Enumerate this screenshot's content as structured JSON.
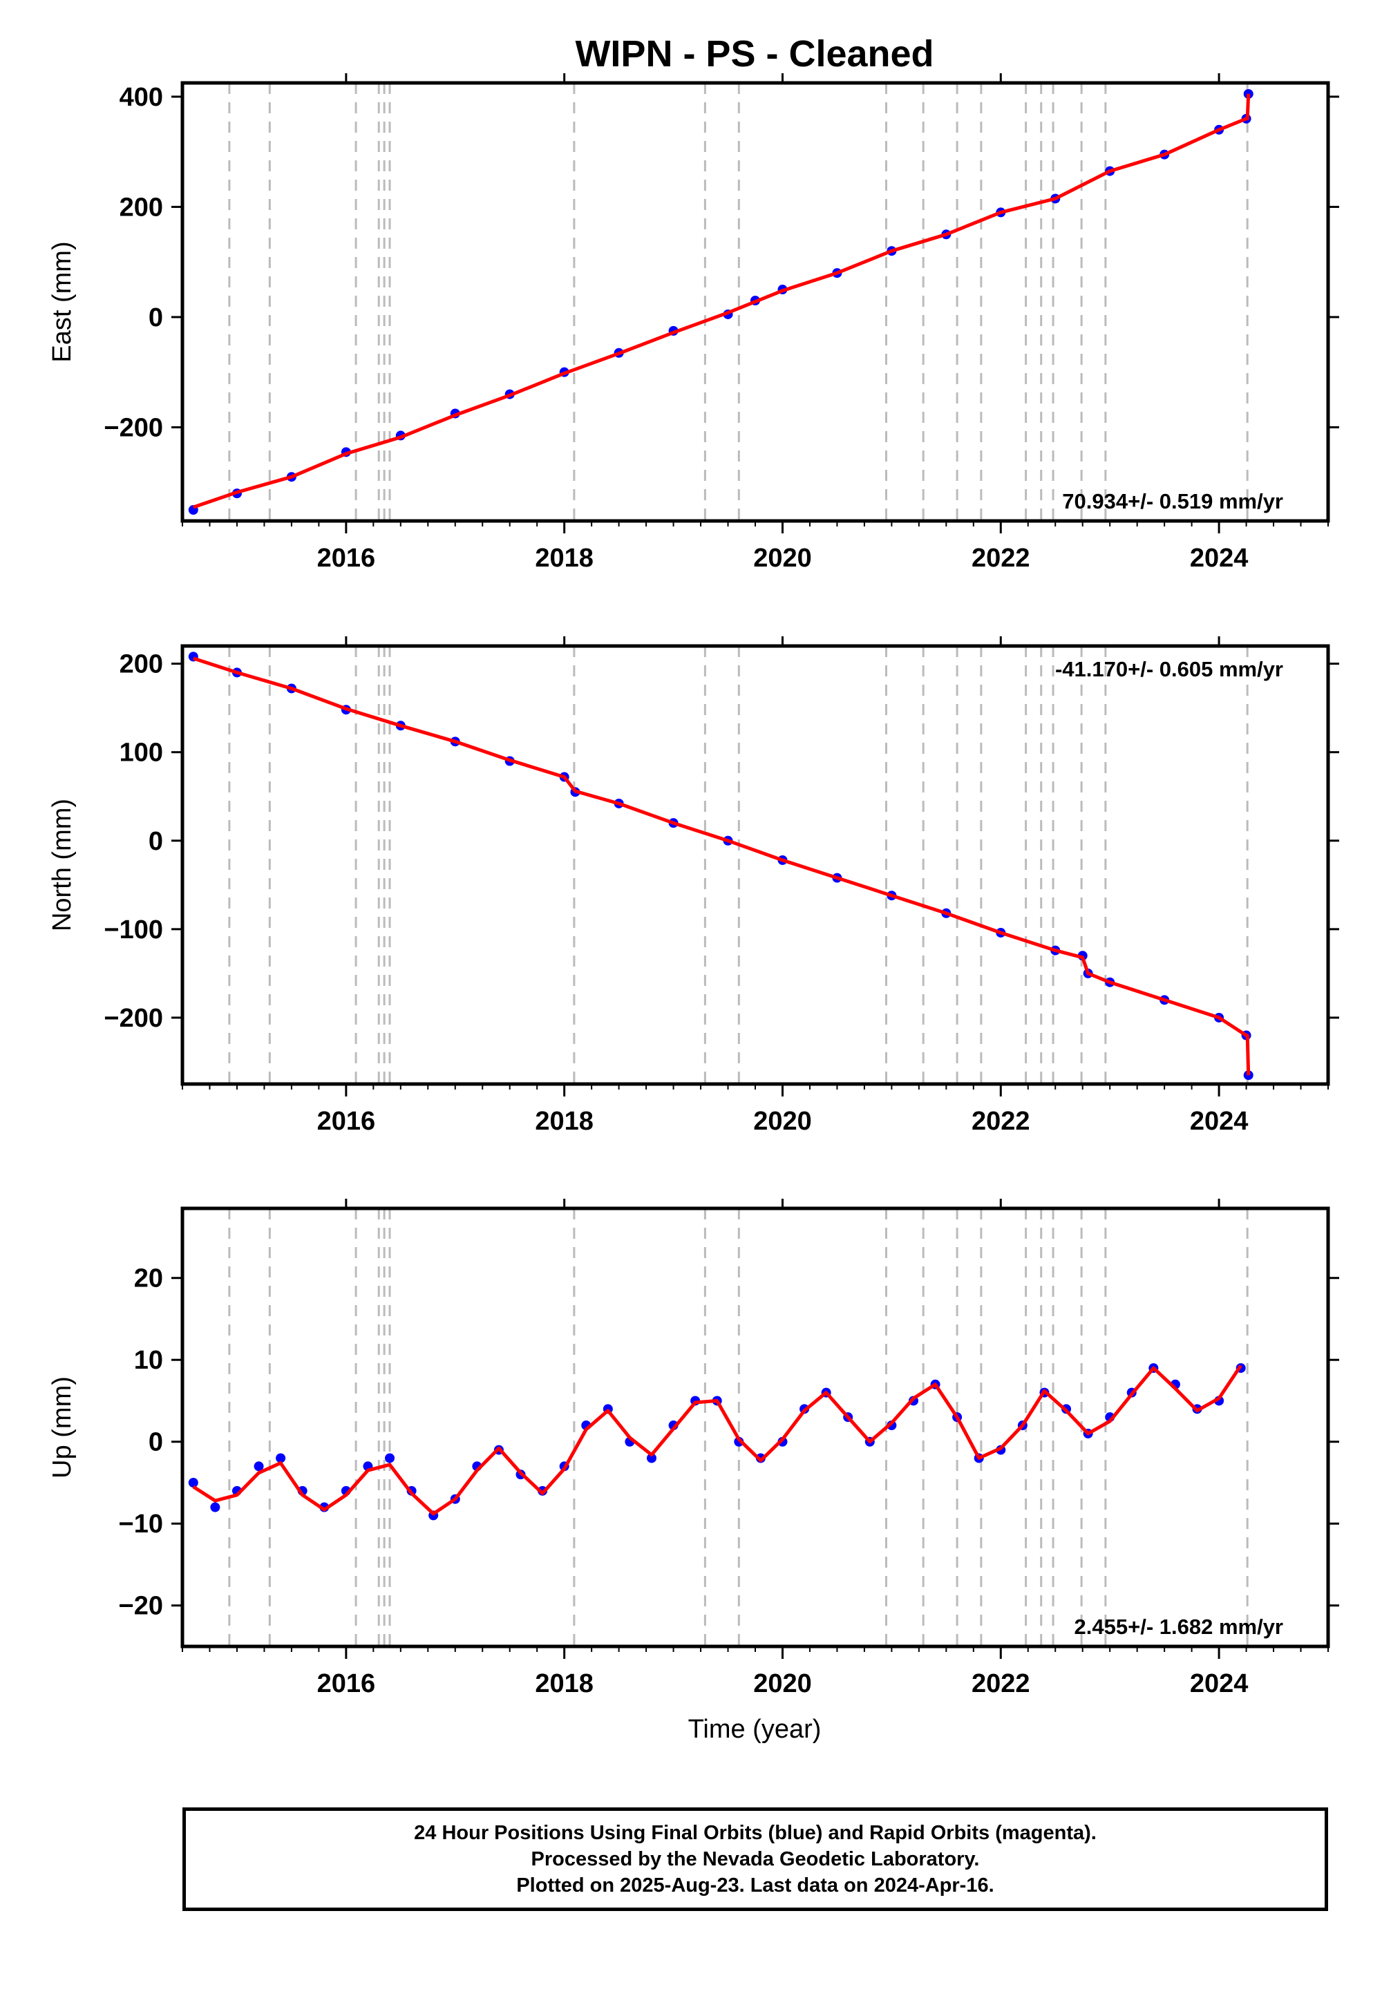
{
  "title": "WIPN  - PS - Cleaned",
  "xlabel": "Time (year)",
  "footer": {
    "line1": "24 Hour Positions Using Final Orbits (blue) and Rapid Orbits (magenta).",
    "line2": "Processed by the Nevada Geodetic Laboratory.",
    "line3": "Plotted on 2025-Aug-23. Last data on 2024-Apr-16."
  },
  "colors": {
    "points": "#0000ff",
    "model": "#ff0000",
    "steps": "#bbbbbb",
    "axis": "#000000"
  },
  "chart_data": [
    {
      "type": "scatter",
      "component": "East",
      "ylabel": "East (mm)",
      "xlim": [
        2014.5,
        2025.0
      ],
      "ylim": [
        -370,
        425
      ],
      "xticks": [
        2016,
        2018,
        2020,
        2022,
        2024
      ],
      "xtick_labels": [
        "2016",
        "2018",
        "2020",
        "2022",
        "2024"
      ],
      "yticks": [
        -200,
        0,
        200,
        400
      ],
      "ytick_labels": [
        "−200",
        "0",
        "200",
        "400"
      ],
      "rate_label": "70.934+/- 0.519 mm/yr",
      "rate_position": "bottom-right",
      "grid": false,
      "series": [
        {
          "name": "Final Orbits (blue)",
          "style": "points",
          "x": [
            2014.6,
            2015.0,
            2015.5,
            2016.0,
            2016.5,
            2017.0,
            2017.5,
            2018.0,
            2018.5,
            2019.0,
            2019.5,
            2019.75,
            2020.0,
            2020.5,
            2021.0,
            2021.5,
            2022.0,
            2022.5,
            2023.0,
            2023.5,
            2024.0,
            2024.25,
            2024.27
          ],
          "y": [
            -350,
            -320,
            -290,
            -245,
            -215,
            -175,
            -140,
            -100,
            -65,
            -25,
            5,
            30,
            50,
            80,
            120,
            150,
            190,
            215,
            265,
            295,
            340,
            360,
            405
          ]
        },
        {
          "name": "Model fit",
          "style": "line",
          "x": [
            2014.6,
            2015.0,
            2015.5,
            2016.0,
            2016.5,
            2017.0,
            2017.5,
            2018.0,
            2018.5,
            2019.0,
            2019.5,
            2020.0,
            2020.5,
            2021.0,
            2021.5,
            2022.0,
            2022.5,
            2023.0,
            2023.5,
            2024.0,
            2024.25,
            2024.26,
            2024.27
          ],
          "y": [
            -345,
            -318,
            -290,
            -248,
            -218,
            -178,
            -142,
            -102,
            -66,
            -28,
            8,
            48,
            80,
            120,
            150,
            190,
            215,
            265,
            295,
            340,
            360,
            360,
            405
          ]
        }
      ]
    },
    {
      "type": "scatter",
      "component": "North",
      "ylabel": "North (mm)",
      "xlim": [
        2014.5,
        2025.0
      ],
      "ylim": [
        -275,
        220
      ],
      "xticks": [
        2016,
        2018,
        2020,
        2022,
        2024
      ],
      "xtick_labels": [
        "2016",
        "2018",
        "2020",
        "2022",
        "2024"
      ],
      "yticks": [
        -200,
        -100,
        0,
        100,
        200
      ],
      "ytick_labels": [
        "−200",
        "−100",
        "0",
        "100",
        "200"
      ],
      "rate_label": "-41.170+/- 0.605 mm/yr",
      "rate_position": "top-right",
      "grid": false,
      "series": [
        {
          "name": "Final Orbits (blue)",
          "style": "points",
          "x": [
            2014.6,
            2015.0,
            2015.5,
            2016.0,
            2016.5,
            2017.0,
            2017.5,
            2018.0,
            2018.1,
            2018.5,
            2019.0,
            2019.5,
            2020.0,
            2020.5,
            2021.0,
            2021.5,
            2022.0,
            2022.5,
            2022.75,
            2022.8,
            2023.0,
            2023.5,
            2024.0,
            2024.25,
            2024.27
          ],
          "y": [
            208,
            190,
            172,
            148,
            130,
            112,
            90,
            72,
            55,
            42,
            20,
            0,
            -22,
            -42,
            -62,
            -82,
            -104,
            -124,
            -130,
            -150,
            -160,
            -180,
            -200,
            -220,
            -265
          ]
        },
        {
          "name": "Model fit",
          "style": "line",
          "x": [
            2014.6,
            2015.0,
            2015.5,
            2016.0,
            2016.5,
            2017.0,
            2017.5,
            2018.0,
            2018.1,
            2018.5,
            2019.0,
            2019.5,
            2020.0,
            2020.5,
            2021.0,
            2021.5,
            2022.0,
            2022.5,
            2022.75,
            2022.8,
            2023.0,
            2023.5,
            2024.0,
            2024.25,
            2024.26,
            2024.27
          ],
          "y": [
            206,
            190,
            172,
            149,
            130,
            112,
            91,
            72,
            56,
            42,
            20,
            0,
            -22,
            -42,
            -62,
            -82,
            -104,
            -124,
            -132,
            -150,
            -160,
            -180,
            -200,
            -220,
            -220,
            -265
          ]
        }
      ]
    },
    {
      "type": "scatter",
      "component": "Up",
      "ylabel": "Up (mm)",
      "xlim": [
        2014.5,
        2025.0
      ],
      "ylim": [
        -25,
        28.5
      ],
      "xticks": [
        2016,
        2018,
        2020,
        2022,
        2024
      ],
      "xtick_labels": [
        "2016",
        "2018",
        "2020",
        "2022",
        "2024"
      ],
      "yticks": [
        -20,
        -10,
        0,
        10,
        20
      ],
      "ytick_labels": [
        "−20",
        "−10",
        "0",
        "10",
        "20"
      ],
      "rate_label": "2.455+/- 1.682 mm/yr",
      "rate_position": "bottom-right",
      "grid": false,
      "series": [
        {
          "name": "Final Orbits (blue)",
          "style": "points",
          "x": [
            2014.6,
            2014.8,
            2015.0,
            2015.2,
            2015.4,
            2015.6,
            2015.8,
            2016.0,
            2016.2,
            2016.4,
            2016.6,
            2016.8,
            2017.0,
            2017.2,
            2017.4,
            2017.6,
            2017.8,
            2018.0,
            2018.2,
            2018.4,
            2018.6,
            2018.8,
            2019.0,
            2019.2,
            2019.4,
            2019.6,
            2019.8,
            2020.0,
            2020.2,
            2020.4,
            2020.6,
            2020.8,
            2021.0,
            2021.2,
            2021.4,
            2021.6,
            2021.8,
            2022.0,
            2022.2,
            2022.4,
            2022.6,
            2022.8,
            2023.0,
            2023.2,
            2023.4,
            2023.6,
            2023.8,
            2024.0,
            2024.2
          ],
          "y": [
            -5,
            -8,
            -6,
            -3,
            -2,
            -6,
            -8,
            -6,
            -3,
            -2,
            -6,
            -9,
            -7,
            -3,
            -1,
            -4,
            -6,
            -3,
            2,
            4,
            0,
            -2,
            2,
            5,
            5,
            0,
            -2,
            0,
            4,
            6,
            3,
            0,
            2,
            5,
            7,
            3,
            -2,
            -1,
            2,
            6,
            4,
            1,
            3,
            6,
            9,
            7,
            4,
            5,
            9
          ]
        },
        {
          "name": "Model fit",
          "style": "line",
          "x": [
            2014.6,
            2014.8,
            2015.0,
            2015.2,
            2015.4,
            2015.6,
            2015.8,
            2016.0,
            2016.2,
            2016.4,
            2016.6,
            2016.8,
            2017.0,
            2017.2,
            2017.4,
            2017.6,
            2017.8,
            2018.0,
            2018.2,
            2018.4,
            2018.6,
            2018.8,
            2019.0,
            2019.2,
            2019.4,
            2019.6,
            2019.8,
            2020.0,
            2020.2,
            2020.4,
            2020.6,
            2020.8,
            2021.0,
            2021.2,
            2021.4,
            2021.6,
            2021.8,
            2022.0,
            2022.2,
            2022.4,
            2022.6,
            2022.8,
            2023.0,
            2023.2,
            2023.4,
            2023.6,
            2023.8,
            2024.0,
            2024.2
          ],
          "y": [
            -5.5,
            -7.2,
            -6.5,
            -3.8,
            -2.6,
            -6.5,
            -8.3,
            -6.5,
            -3.5,
            -2.8,
            -6.3,
            -8.8,
            -7.0,
            -3.5,
            -0.8,
            -3.8,
            -6.3,
            -3.3,
            1.5,
            3.8,
            0.5,
            -1.6,
            1.6,
            4.8,
            5.0,
            0.3,
            -2.3,
            0.3,
            3.8,
            6.0,
            3.0,
            0.0,
            2.3,
            5.3,
            7.0,
            3.0,
            -2.0,
            -0.8,
            2.0,
            6.2,
            3.8,
            1.0,
            2.5,
            5.8,
            9.0,
            6.5,
            3.8,
            5.3,
            9.3
          ]
        }
      ]
    }
  ]
}
